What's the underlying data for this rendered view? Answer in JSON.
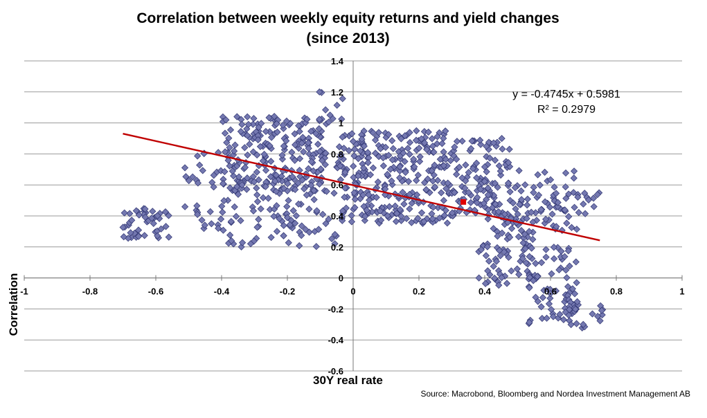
{
  "title_line1": "Correlation between weekly equity returns and yield changes",
  "title_line2": "(since 2013)",
  "source": "Source: Macrobond, Bloomberg and Nordea Investment Management AB",
  "colors": {
    "points": "#7478b0",
    "points_stroke": "#2f3470",
    "trend": "#c00000",
    "highlight": "#e00000",
    "grid": "#999999"
  },
  "chart_data": {
    "type": "scatter",
    "title": "Correlation between weekly equity returns and yield changes (since 2013)",
    "xlabel": "30Y real rate",
    "ylabel": "Correlation",
    "xlim": [
      -1,
      1
    ],
    "ylim": [
      -0.6,
      1.4
    ],
    "xticks": [
      "-1",
      "-0.8",
      "-0.6",
      "-0.4",
      "-0.2",
      "0",
      "0.2",
      "0.4",
      "0.6",
      "0.8",
      "1"
    ],
    "yticks": [
      "1.4",
      "1.2",
      "1",
      "0.8",
      "0.6",
      "0.4",
      "0.2",
      "0",
      "-0.2",
      "-0.4",
      "-0.6"
    ],
    "grid": true,
    "trendline": {
      "equation": "y = -0.4745x + 0.5981",
      "r2": "R² = 0.2979",
      "slope": -0.4745,
      "intercept": 0.5981,
      "x_range": [
        -0.7,
        0.75
      ]
    },
    "highlight_point": {
      "x": 0.335,
      "y": 0.49
    },
    "clusters": [
      {
        "x": [
          -0.7,
          -0.56
        ],
        "y": [
          0.25,
          0.45
        ],
        "n": 45
      },
      {
        "x": [
          -0.52,
          -0.4
        ],
        "y": [
          0.28,
          0.85
        ],
        "n": 30
      },
      {
        "x": [
          -0.4,
          -0.08
        ],
        "y": [
          0.55,
          1.05
        ],
        "n": 230
      },
      {
        "x": [
          -0.4,
          -0.05
        ],
        "y": [
          0.2,
          0.6
        ],
        "n": 90
      },
      {
        "x": [
          -0.13,
          -0.03
        ],
        "y": [
          1.0,
          1.2
        ],
        "n": 10
      },
      {
        "x": [
          -0.05,
          0.3
        ],
        "y": [
          0.35,
          0.95
        ],
        "n": 300
      },
      {
        "x": [
          0.3,
          0.48
        ],
        "y": [
          0.4,
          0.9
        ],
        "n": 120
      },
      {
        "x": [
          0.48,
          0.68
        ],
        "y": [
          0.3,
          0.7
        ],
        "n": 70
      },
      {
        "x": [
          0.38,
          0.55
        ],
        "y": [
          -0.05,
          0.45
        ],
        "n": 80
      },
      {
        "x": [
          0.52,
          0.68
        ],
        "y": [
          -0.3,
          0.2
        ],
        "n": 70
      },
      {
        "x": [
          0.62,
          0.76
        ],
        "y": [
          -0.35,
          -0.15
        ],
        "n": 25
      },
      {
        "x": [
          0.68,
          0.76
        ],
        "y": [
          0.4,
          0.55
        ],
        "n": 12
      }
    ]
  }
}
